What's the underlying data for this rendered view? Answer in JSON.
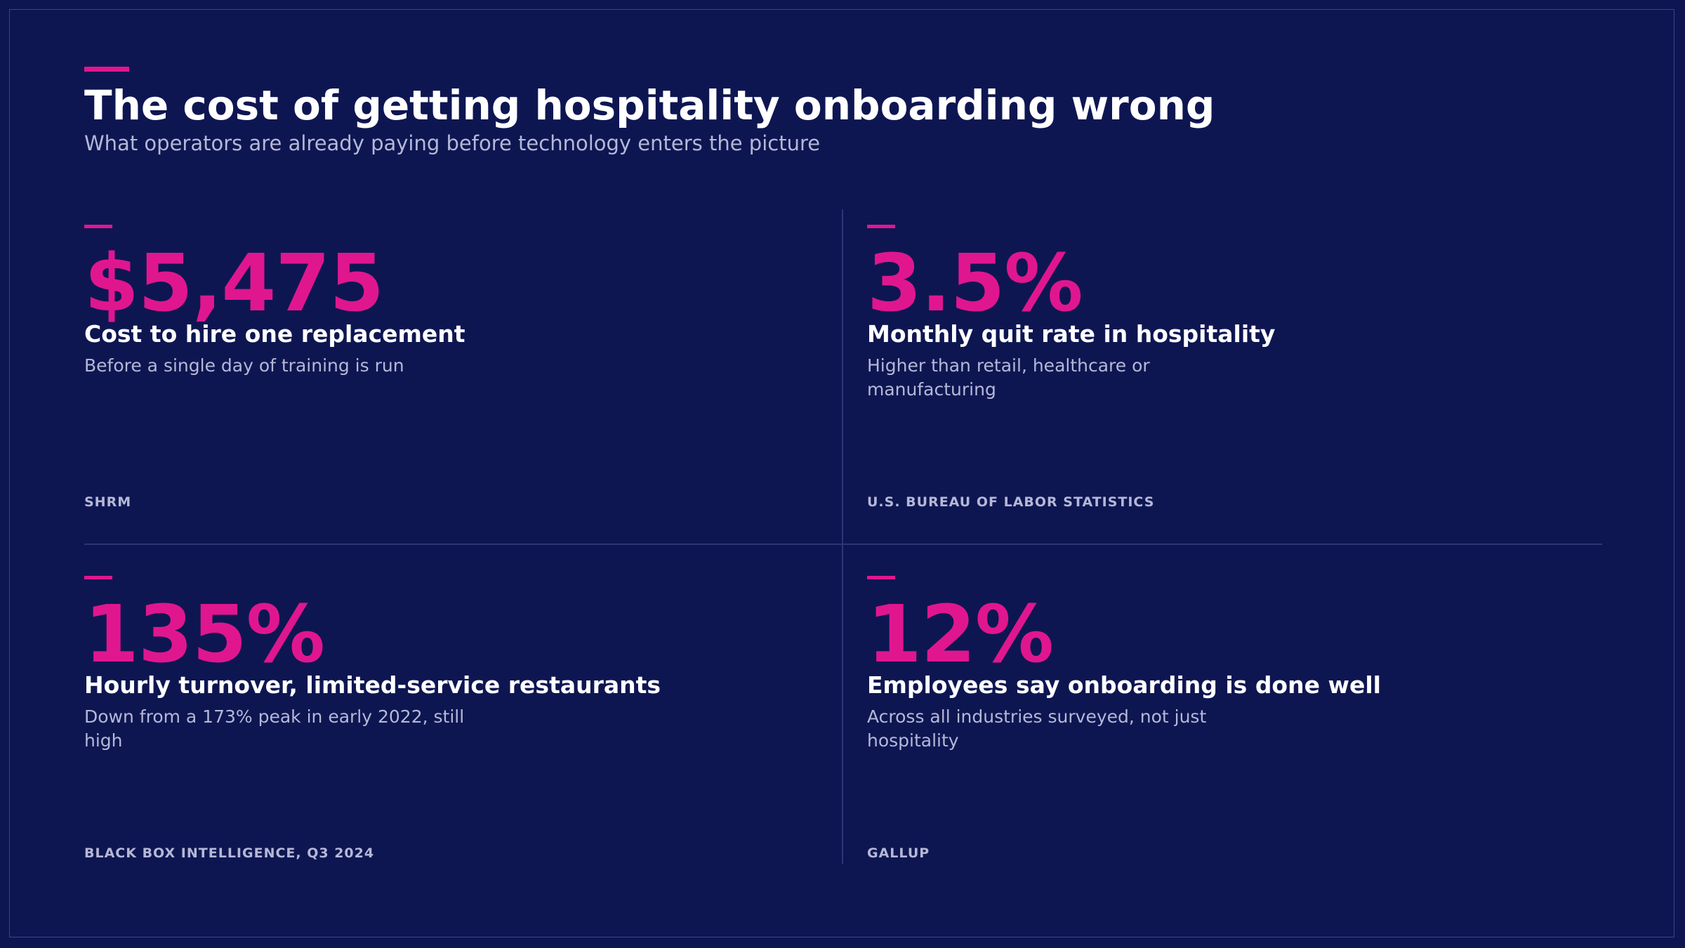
{
  "header": {
    "title": "The cost of getting hospitality onboarding wrong",
    "subtitle": "What operators are already paying before technology enters the picture"
  },
  "stats": [
    {
      "value": "$5,475",
      "label": "Cost to hire one replacement",
      "description": "Before a single day of training is run",
      "source": "SHRM"
    },
    {
      "value": "3.5%",
      "label": "Monthly quit rate in hospitality",
      "description": "Higher than retail, healthcare or manufacturing",
      "source": "U.S. BUREAU OF LABOR STATISTICS"
    },
    {
      "value": "135%",
      "label": "Hourly turnover, limited-service restaurants",
      "description": "Down from a 173% peak in early 2022, still high",
      "source": "BLACK BOX INTELLIGENCE, Q3 2024"
    },
    {
      "value": "12%",
      "label": "Employees say onboarding is done well",
      "description": "Across all industries surveyed, not just hospitality",
      "source": "GALLUP"
    }
  ],
  "colors": {
    "background": "#0e1652",
    "accent": "#e0168f",
    "text_primary": "#ffffff",
    "text_secondary": "#b5b8d6"
  }
}
